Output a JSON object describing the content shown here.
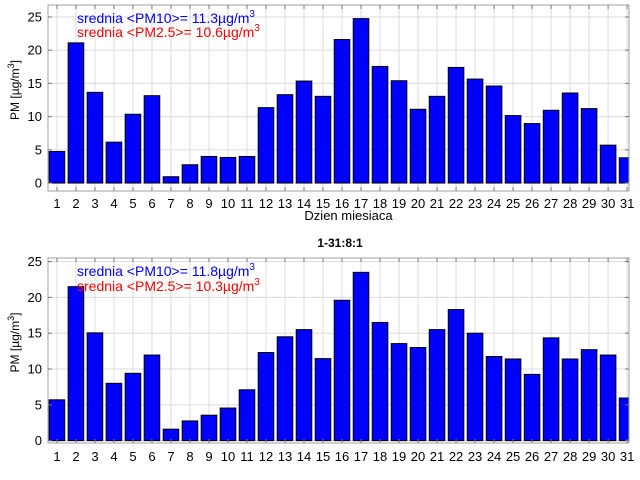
{
  "chart_data": [
    {
      "type": "bar",
      "title": "",
      "xlabel": "Dzien miesiaca",
      "ylabel": "PM [µg/m3]",
      "ylabel_main": "PM [µg/m",
      "ylabel_sup": "3",
      "ylabel_end": "]",
      "xlim": [
        0.53,
        31.1
      ],
      "ylim": [
        -1.2,
        26.8
      ],
      "yticks": [
        0,
        5,
        10,
        15,
        20,
        25
      ],
      "grid": true,
      "categories": [
        1,
        2,
        3,
        4,
        5,
        6,
        7,
        8,
        9,
        10,
        11,
        12,
        13,
        14,
        15,
        16,
        17,
        18,
        19,
        20,
        21,
        22,
        23,
        24,
        25,
        26,
        27,
        28,
        29,
        30,
        31
      ],
      "values": [
        4.75,
        21.1,
        13.65,
        6.15,
        10.35,
        13.15,
        0.95,
        2.75,
        4.0,
        3.85,
        4.0,
        11.35,
        13.3,
        15.35,
        13.05,
        21.6,
        24.75,
        17.55,
        15.4,
        11.1,
        13.05,
        17.4,
        15.65,
        14.6,
        10.15,
        8.95,
        10.95,
        13.55,
        11.2,
        5.7,
        3.8
      ],
      "bar_color": "#0000ff",
      "annotations": [
        {
          "text": "srednia <PM10>= 11.3µg/m",
          "sup": "3",
          "color": "#0000ff"
        },
        {
          "text": "srednia <PM2.5>= 10.6µg/m",
          "sup": "3",
          "color": "#ff0000"
        }
      ]
    },
    {
      "type": "bar",
      "title": "1-31:8:1",
      "xlabel": "",
      "ylabel": "PM [µg/m3]",
      "ylabel_main": "PM [µg/m",
      "ylabel_sup": "3",
      "ylabel_end": "]",
      "xlim": [
        0.53,
        31.1
      ],
      "ylim": [
        -0.33,
        25.5
      ],
      "yticks": [
        0,
        5,
        10,
        15,
        20,
        25
      ],
      "grid": true,
      "categories": [
        1,
        2,
        3,
        4,
        5,
        6,
        7,
        8,
        9,
        10,
        11,
        12,
        13,
        14,
        15,
        16,
        17,
        18,
        19,
        20,
        21,
        22,
        23,
        24,
        25,
        26,
        27,
        28,
        29,
        30,
        31
      ],
      "values": [
        5.7,
        21.5,
        15.05,
        8.0,
        9.4,
        11.95,
        1.6,
        2.75,
        3.55,
        4.55,
        7.1,
        12.3,
        14.5,
        15.5,
        11.45,
        19.6,
        23.5,
        16.5,
        13.55,
        13.0,
        15.5,
        18.3,
        15.0,
        11.75,
        11.4,
        9.25,
        14.35,
        11.4,
        12.7,
        11.95,
        5.95
      ],
      "bar_color": "#0000ff",
      "annotations": [
        {
          "text": "srednia <PM10>= 11.8µg/m",
          "sup": "3",
          "color": "#0000ff"
        },
        {
          "text": "srednia <PM2.5>= 10.3µg/m",
          "sup": "3",
          "color": "#ff0000"
        }
      ]
    }
  ]
}
